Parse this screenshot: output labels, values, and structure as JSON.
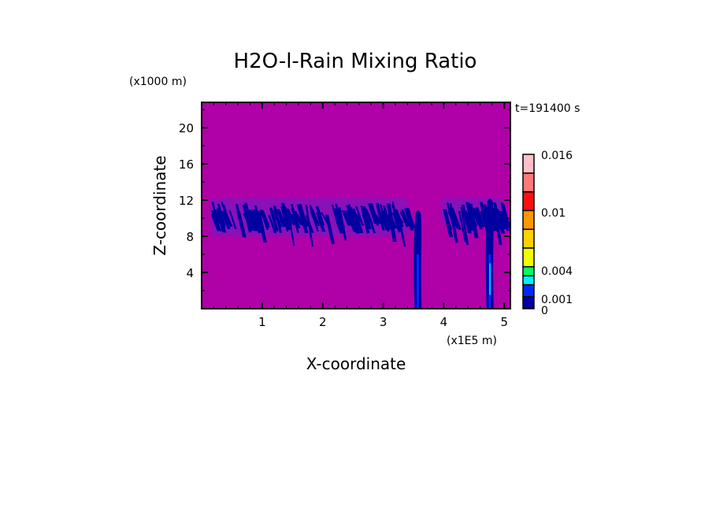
{
  "chart_data": {
    "type": "heatmap",
    "title": "H2O-l-Rain Mixing Ratio",
    "xlabel": "X-coordinate",
    "ylabel": "Z-coordinate",
    "x_unit": "(x1E5 m)",
    "y_unit": "(x1000 m)",
    "time_label": "t=191400 s",
    "xlim": [
      0,
      5.1
    ],
    "ylim": [
      0,
      22.8
    ],
    "x_ticks": [
      "1",
      "2",
      "3",
      "4",
      "5"
    ],
    "x_tick_values": [
      1,
      2,
      3,
      4,
      5
    ],
    "y_ticks": [
      "4",
      "8",
      "12",
      "16",
      "20"
    ],
    "y_tick_values": [
      4,
      8,
      12,
      16,
      20
    ],
    "grid": false,
    "background_color": "#b000a8",
    "colorbar": {
      "labels": [
        "0",
        "0.001",
        "0.004",
        "0.01",
        "0.016"
      ],
      "label_values": [
        0,
        0.001,
        0.004,
        0.01,
        0.016
      ],
      "colors": [
        "#0000a0",
        "#0028ff",
        "#00f0ff",
        "#00ff60",
        "#f0ff00",
        "#ffd000",
        "#ff9800",
        "#ff1010",
        "#ff7878",
        "#ffc0c8"
      ]
    },
    "regions": [
      {
        "kind": "cloud-band",
        "x_range": [
          0.15,
          3.4
        ],
        "z_range": [
          6.5,
          12.5
        ],
        "level": "0-0.001"
      },
      {
        "kind": "cloud-band",
        "x_range": [
          3.95,
          5.0
        ],
        "z_range": [
          8,
          12.5
        ],
        "level": "0-0.001"
      },
      {
        "kind": "rain-column",
        "x_center": 3.57,
        "z_range": [
          0,
          11.2
        ],
        "level": "0.001-0.002"
      },
      {
        "kind": "rain-column",
        "x_center": 4.76,
        "z_range": [
          0,
          12.5
        ],
        "level": "0.001-0.004"
      }
    ]
  }
}
